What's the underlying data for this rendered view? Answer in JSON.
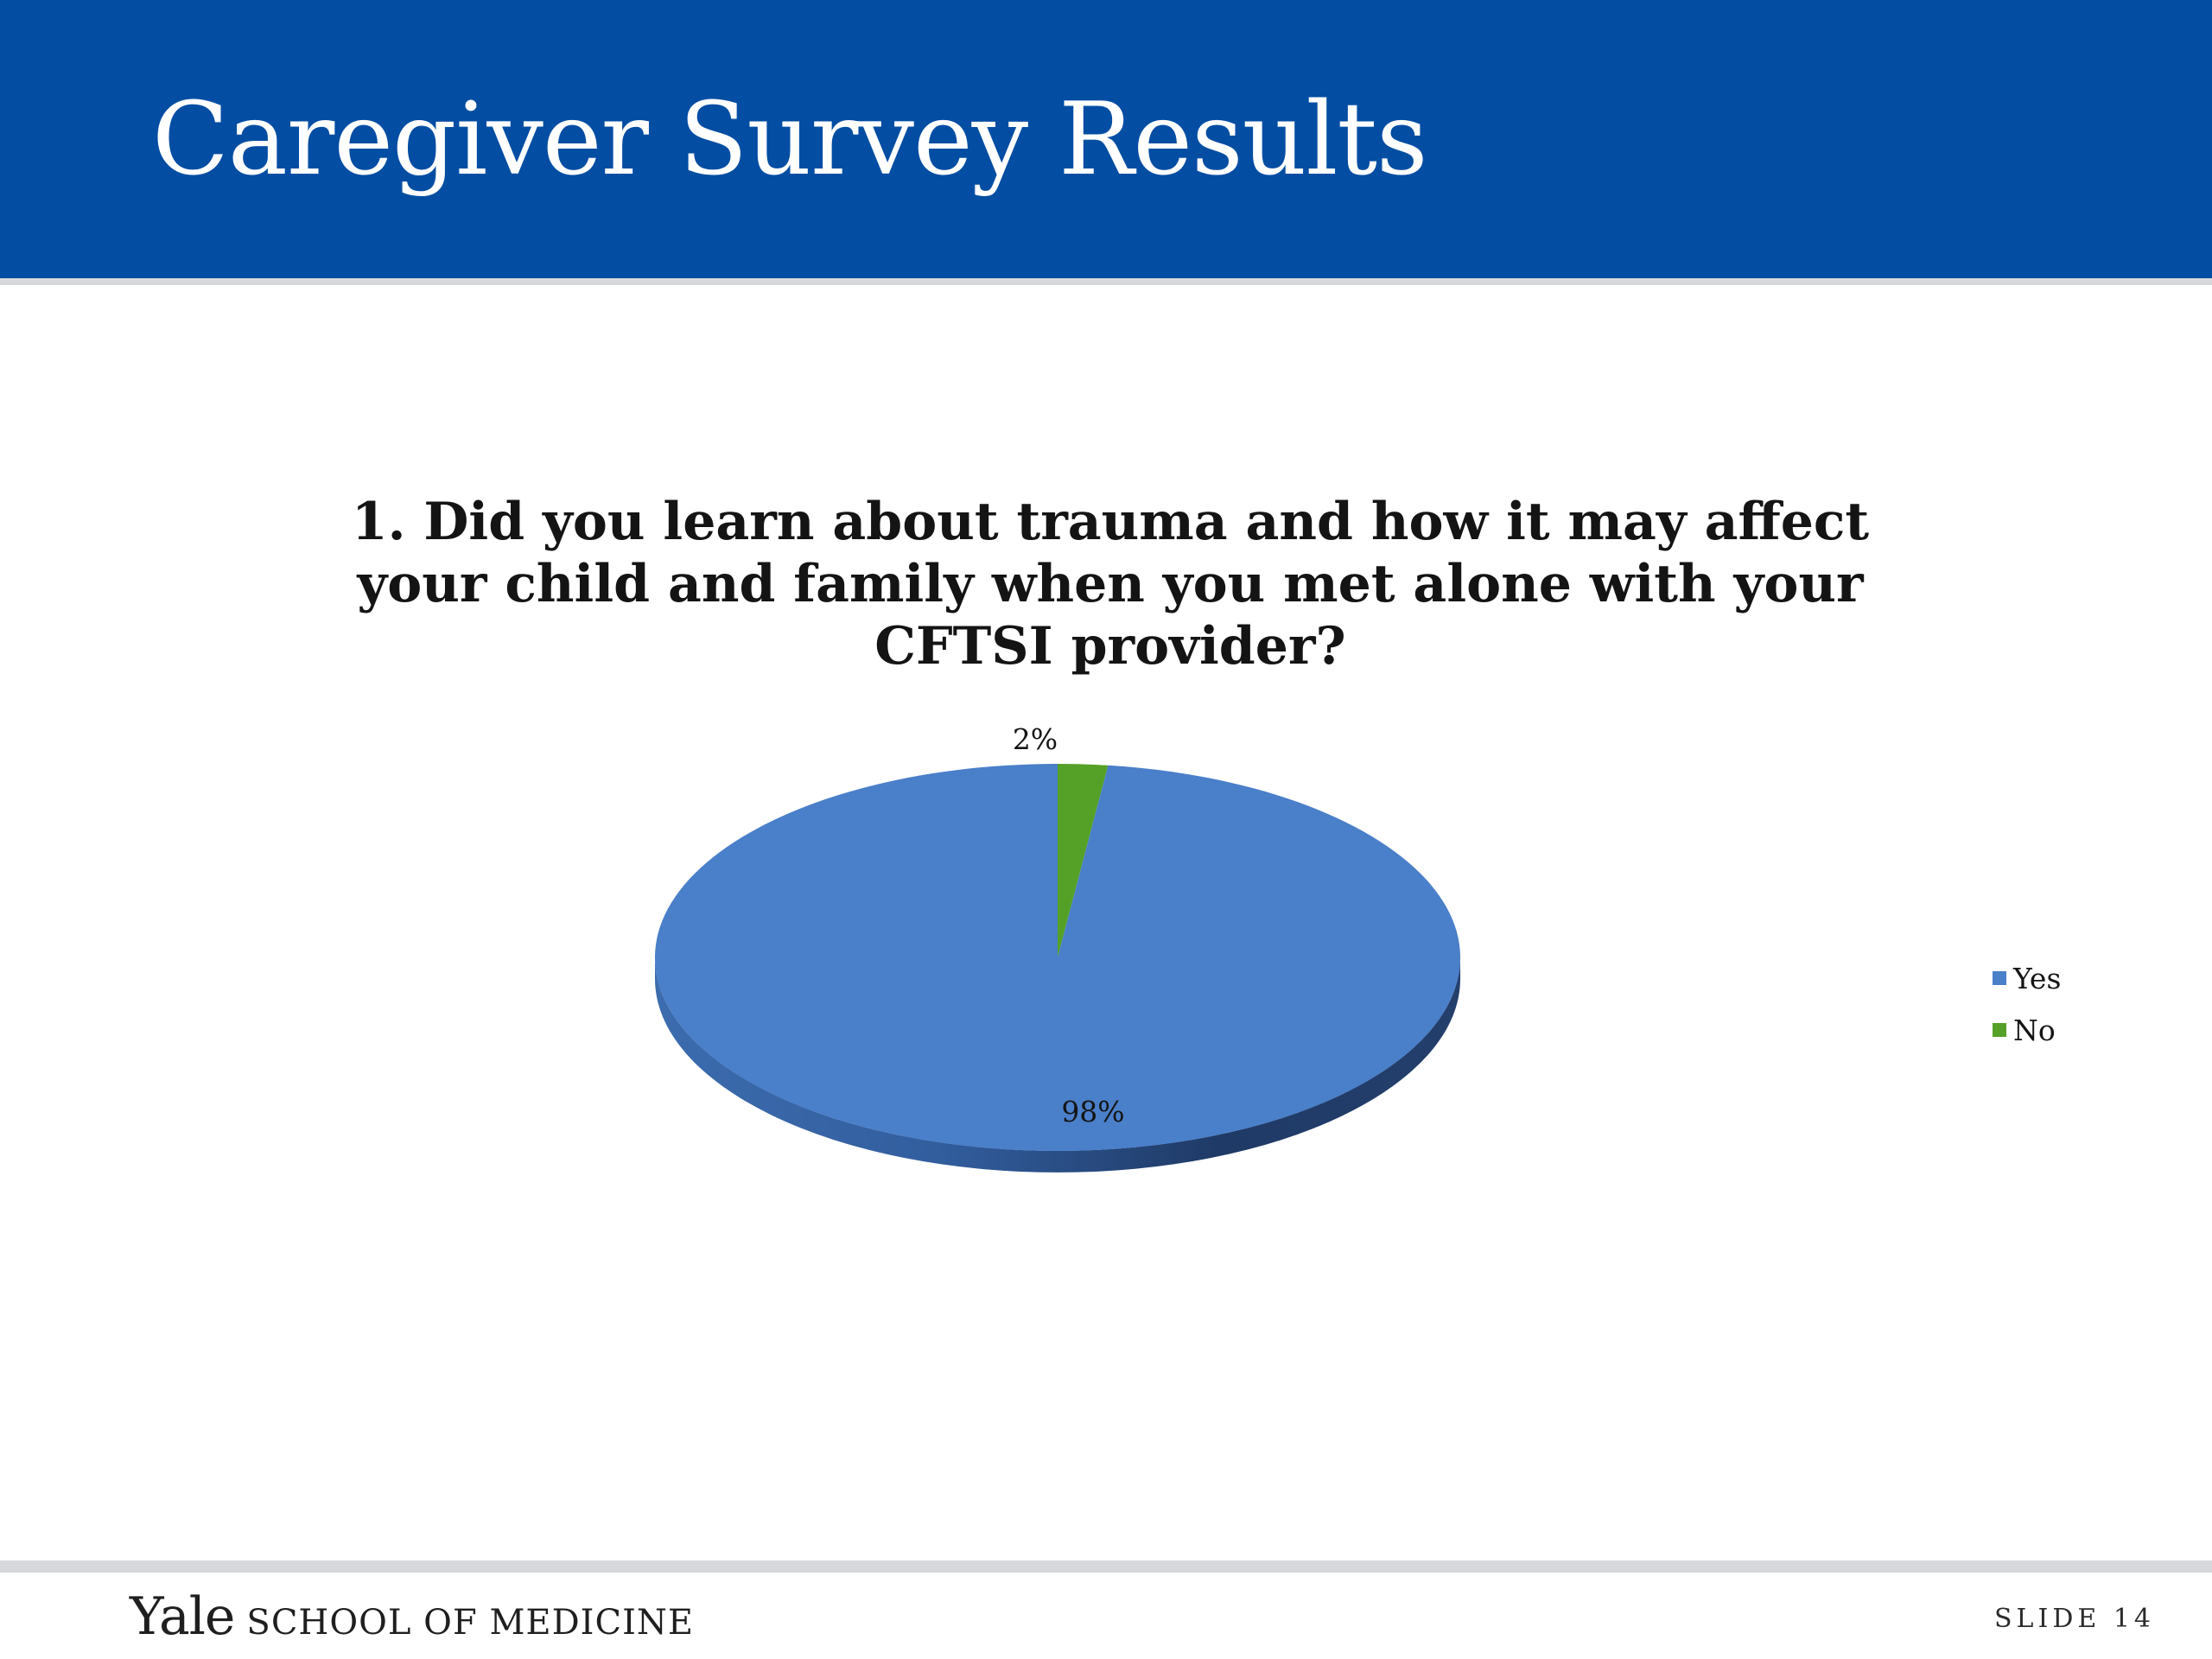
{
  "slide": {
    "title": "Caregiver Survey Results"
  },
  "colors": {
    "header": "#034da3",
    "yes": "#4a7fc9",
    "no": "#55a127"
  },
  "chart_data": {
    "type": "pie",
    "title": "1. Did you learn about trauma and how it may affect your child and family when you met alone with your CFTSI provider?",
    "categories": [
      "Yes",
      "No"
    ],
    "values": [
      98,
      2
    ],
    "data_labels": [
      "98%",
      "2%"
    ],
    "colors": [
      "#4a7fc9",
      "#55a127"
    ],
    "style": "3d",
    "legend": {
      "placement": "right",
      "items": [
        "Yes",
        "No"
      ]
    }
  },
  "footer": {
    "brand_yale": "Yale",
    "brand_school": "SCHOOL OF MEDICINE",
    "slide_number": "SLIDE 14"
  }
}
